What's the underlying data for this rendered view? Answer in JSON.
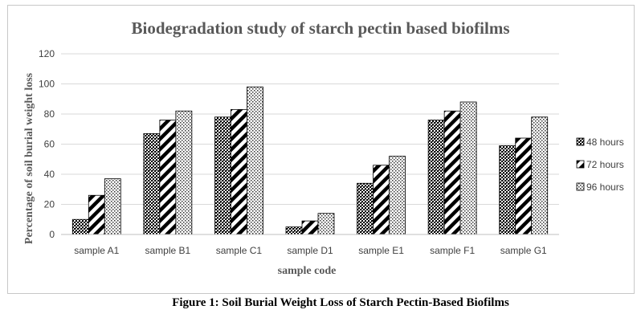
{
  "chart_data": {
    "type": "bar",
    "title": "Biodegradation study of starch pectin based biofilms",
    "xlabel": "sample code",
    "ylabel": "Percentage of soil burial weight loss",
    "ylim": [
      0,
      120
    ],
    "yticks": [
      0,
      20,
      40,
      60,
      80,
      100,
      120
    ],
    "grid": true,
    "legend_position": "right",
    "categories": [
      "sample A1",
      "sample B1",
      "sample C1",
      "sample D1",
      "sample E1",
      "sample F1",
      "sample G1"
    ],
    "series": [
      {
        "name": "48 hours",
        "pattern": "dense-dots",
        "values": [
          10,
          67,
          78,
          5,
          34,
          76,
          59
        ]
      },
      {
        "name": "72 hours",
        "pattern": "diagonal-stripes",
        "values": [
          26,
          76,
          83,
          9,
          46,
          82,
          64
        ]
      },
      {
        "name": "96 hours",
        "pattern": "light-dots",
        "values": [
          37,
          82,
          98,
          14,
          52,
          88,
          78
        ]
      }
    ]
  },
  "caption": "Figure 1: Soil Burial Weight Loss of Starch Pectin-Based Biofilms"
}
